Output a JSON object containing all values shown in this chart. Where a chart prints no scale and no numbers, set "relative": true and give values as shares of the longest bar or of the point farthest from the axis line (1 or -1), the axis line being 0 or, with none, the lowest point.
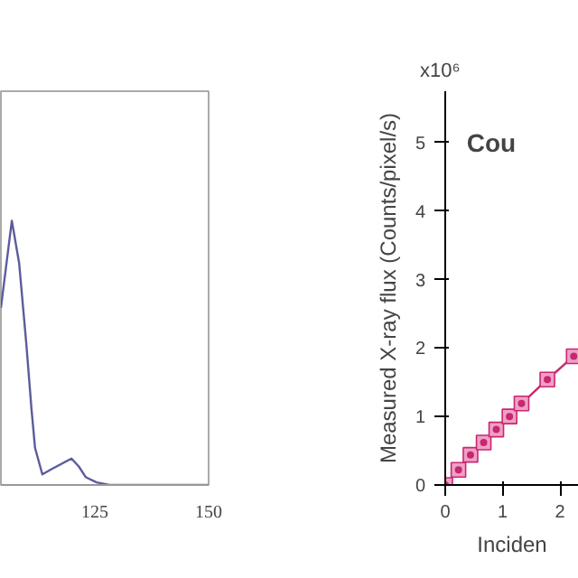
{
  "chart_data": [
    {
      "type": "line",
      "relative": true,
      "x": [
        104.4,
        106.8,
        108.4,
        110.0,
        111.1,
        111.9,
        113.5,
        115.5,
        119.9,
        121.5,
        123.0,
        125.4,
        128.2,
        150
      ],
      "series": [
        {
          "color": "#5c5c9c",
          "values": [
            0.67,
            1,
            0.84,
            0.53,
            0.29,
            0.14,
            0.04,
            0.06,
            0.1,
            0.07,
            0.03,
            0.01,
            0,
            0
          ]
        }
      ],
      "xlim": [
        104.4,
        150
      ],
      "xticks": [
        125,
        150
      ],
      "grid": false,
      "marker": "none"
    },
    {
      "type": "line",
      "title": "Cou",
      "xlabel": "Inciden",
      "ylabel": "Measured X-ray flux (Counts/pixel/s)",
      "annotations": [
        "x10⁶"
      ],
      "x": [
        0,
        0.23,
        0.44,
        0.67,
        0.89,
        1.12,
        1.33,
        1.78,
        2.24
      ],
      "series": [
        {
          "color": "#c8286e",
          "values": [
            0,
            0.22,
            0.44,
            0.62,
            0.81,
            1.0,
            1.19,
            1.54,
            1.88
          ]
        }
      ],
      "xlim": [
        0,
        2.33
      ],
      "ylim": [
        0,
        5.75
      ],
      "xticks": [
        0,
        1,
        2
      ],
      "yticks": [
        0,
        1,
        2,
        3,
        4,
        5
      ],
      "grid": false,
      "marker": "square"
    }
  ]
}
